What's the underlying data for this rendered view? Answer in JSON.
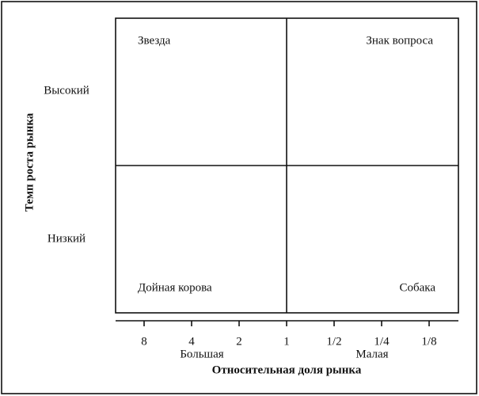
{
  "quadrants": {
    "top_left": "Звезда",
    "top_right": "Знак вопроса",
    "bottom_left": "Дойная корова",
    "bottom_right": "Собака"
  },
  "y_axis": {
    "title": "Темп роста рынка",
    "high": "Высокий",
    "low": "Низкий"
  },
  "x_axis": {
    "title": "Относительная доля рынка",
    "ticks": [
      "8",
      "4",
      "2",
      "1",
      "1/2",
      "1/4",
      "1/8"
    ],
    "left": "Большая",
    "right": "Малая"
  }
}
